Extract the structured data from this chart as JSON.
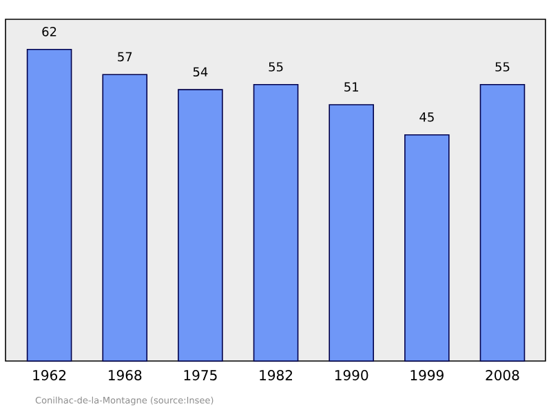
{
  "chart_data": {
    "type": "bar",
    "categories": [
      "1962",
      "1968",
      "1975",
      "1982",
      "1990",
      "1999",
      "2008"
    ],
    "values": [
      62,
      57,
      54,
      55,
      51,
      45,
      55
    ],
    "color": "#6f97f7",
    "ylim": [
      0,
      68
    ],
    "data_labels": true,
    "tick_labels": "x",
    "annotations": [
      "Conilhac-de-la-Montagne    (source:Insee)"
    ]
  }
}
